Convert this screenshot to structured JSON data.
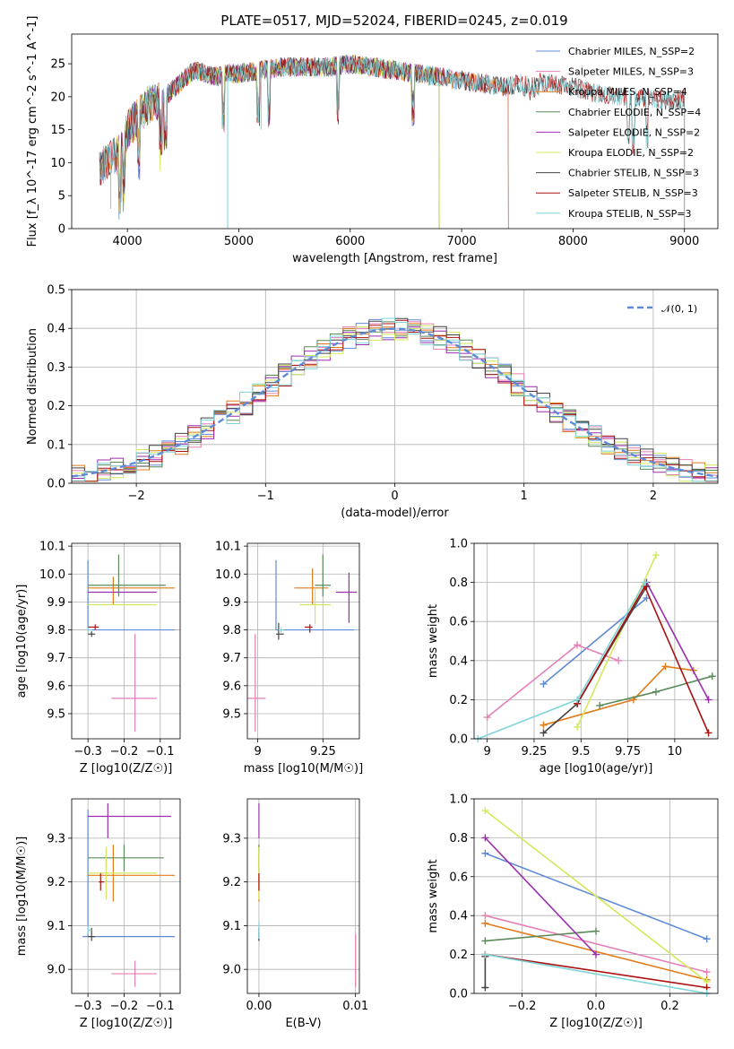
{
  "figure": {
    "title": "PLATE=0517, MJD=52024, FIBERID=0245, z=0.019"
  },
  "colors": {
    "Chabrier MILES": "#5f8bd6",
    "Salpeter MILES": "#e57fb5",
    "Kroupa MILES": "#e07b1a",
    "Chabrier ELODIE": "#5a8a5a",
    "Salpeter ELODIE": "#9b2fae",
    "Kroupa ELODIE": "#d4e85a",
    "Chabrier STELIB": "#444444",
    "Salpeter STELIB": "#aa1111",
    "Kroupa STELIB": "#7fd4d8"
  },
  "chart_data": [
    {
      "id": "spectrum",
      "type": "line",
      "xlabel": "wavelength [Angstrom, rest frame]",
      "ylabel": "Flux [f_λ 10^-17 erg cm^-2 s^-1 A^-1]",
      "xlim": [
        3500,
        9300
      ],
      "ylim": [
        0,
        29.5
      ],
      "xticks": [
        4000,
        5000,
        6000,
        7000,
        8000,
        9000
      ],
      "yticks": [
        0,
        5,
        10,
        15,
        20,
        25
      ],
      "legend_position": "top-right",
      "legend": [
        "Chabrier MILES, N_SSP=2",
        "Salpeter MILES, N_SSP=3",
        "Kroupa MILES, N_SSP=4",
        "Chabrier ELODIE, N_SSP=4",
        "Salpeter ELODIE, N_SSP=2",
        "Kroupa ELODIE, N_SSP=2",
        "Chabrier STELIB, N_SSP=3",
        "Salpeter STELIB, N_SSP=3",
        "Kroupa STELIB, N_SSP=3"
      ],
      "continuum_x": [
        3750,
        3800,
        3850,
        3900,
        3950,
        4000,
        4100,
        4200,
        4300,
        4400,
        4500,
        4600,
        4700,
        4800,
        4900,
        5000,
        5200,
        5400,
        5600,
        5800,
        6000,
        6200,
        6400,
        6600,
        6800,
        7000,
        7200,
        7400,
        7600,
        7800,
        8000,
        8200,
        8400,
        8600,
        8800,
        9000
      ],
      "continuum_y": [
        9,
        10,
        11,
        11,
        12,
        15,
        17,
        19,
        19.5,
        21,
        22.5,
        24,
        23.5,
        23,
        23.5,
        23.5,
        24,
        24.5,
        24.5,
        24.5,
        25,
        24.5,
        24,
        23.5,
        23,
        22.5,
        22,
        21.5,
        22.5,
        22,
        21.5,
        20.5,
        20,
        20,
        19.5,
        19.5
      ],
      "series_ranges": [
        {
          "name": "Chabrier MILES",
          "xmin": 3750,
          "xmax": 7420
        },
        {
          "name": "Salpeter MILES",
          "xmin": 3750,
          "xmax": 7420
        },
        {
          "name": "Kroupa MILES",
          "xmin": 3750,
          "xmax": 7420
        },
        {
          "name": "Chabrier ELODIE",
          "xmin": 3900,
          "xmax": 6800
        },
        {
          "name": "Salpeter ELODIE",
          "xmin": 3900,
          "xmax": 6800
        },
        {
          "name": "Kroupa ELODIE",
          "xmin": 3900,
          "xmax": 6800
        },
        {
          "name": "Chabrier STELIB",
          "xmin": 3750,
          "xmax": 9000
        },
        {
          "name": "Salpeter STELIB",
          "xmin": 3750,
          "xmax": 9000
        },
        {
          "name": "Kroupa STELIB",
          "xmin": 3750,
          "xmax": 9000
        }
      ]
    },
    {
      "id": "residuals",
      "type": "histogram",
      "xlabel": "(data-model)/error",
      "ylabel": "Normed distribution",
      "xlim": [
        -2.5,
        2.5
      ],
      "ylim": [
        0,
        0.5
      ],
      "xticks": [
        -2,
        -1,
        0,
        1,
        2
      ],
      "yticks": [
        0.0,
        0.1,
        0.2,
        0.3,
        0.4,
        0.5
      ],
      "bin_width": 0.1,
      "legend_position": "top-right",
      "reference_curve": {
        "name": "𝒩(0, 1)",
        "mean": 0,
        "sigma": 1,
        "color": "#5f8bd6"
      }
    },
    {
      "id": "age-vs-Z",
      "type": "scatter",
      "xlabel": "Z [log10(Z/Z☉)]",
      "ylabel": "age [log10(age/yr)]",
      "xlim": [
        -0.345,
        -0.045
      ],
      "ylim": [
        9.41,
        10.11
      ],
      "xticks": [
        -0.3,
        -0.2,
        -0.1
      ],
      "yticks": [
        9.5,
        9.6,
        9.7,
        9.8,
        9.9,
        10.0,
        10.1
      ],
      "points": [
        {
          "name": "Chabrier MILES",
          "x": -0.3,
          "y": 9.8,
          "xerr": [
            0,
            0.24
          ],
          "yerr": [
            0,
            0.25
          ]
        },
        {
          "name": "Salpeter MILES",
          "x": -0.17,
          "y": 9.555,
          "xerr": [
            0.065,
            0.06
          ],
          "yerr": [
            0.12,
            0.23
          ]
        },
        {
          "name": "Kroupa MILES",
          "x": -0.23,
          "y": 9.95,
          "xerr": [
            0.07,
            0.17
          ],
          "yerr": [
            0.06,
            0.04
          ]
        },
        {
          "name": "Chabrier ELODIE",
          "x": -0.215,
          "y": 9.96,
          "xerr": [
            0.085,
            0.13
          ],
          "yerr": [
            0.04,
            0.11
          ]
        },
        {
          "name": "Salpeter ELODIE",
          "x": -0.26,
          "y": 9.935,
          "xerr": [
            0.04,
            0.15
          ],
          "yerr": [
            0,
            0
          ]
        },
        {
          "name": "Kroupa ELODIE",
          "x": -0.25,
          "y": 9.89,
          "xerr": [
            0.05,
            0.14
          ],
          "yerr": [
            0,
            0
          ]
        },
        {
          "name": "Chabrier STELIB",
          "x": -0.29,
          "y": 9.785,
          "xerr": [
            0.01,
            0.01
          ],
          "yerr": [
            0.01,
            0.01
          ]
        },
        {
          "name": "Salpeter STELIB",
          "x": -0.28,
          "y": 9.81,
          "xerr": [
            0.02,
            0.01
          ],
          "yerr": [
            0.01,
            0.01
          ]
        },
        {
          "name": "Kroupa STELIB",
          "x": -0.3,
          "y": 9.8,
          "xerr": [
            0,
            0.01
          ],
          "yerr": [
            0.01,
            0.01
          ]
        }
      ]
    },
    {
      "id": "age-vs-mass",
      "type": "scatter",
      "xlabel": "mass [log10(M/M☉)]",
      "ylabel": "",
      "xlim": [
        8.96,
        9.39
      ],
      "ylim": [
        9.41,
        10.11
      ],
      "xticks": [
        9.0,
        9.25
      ],
      "yticks": [
        9.5,
        9.6,
        9.7,
        9.8,
        9.9,
        10.0,
        10.1
      ],
      "points": [
        {
          "name": "Chabrier MILES",
          "x": 9.07,
          "y": 9.8,
          "xerr": [
            0,
            0.3
          ],
          "yerr": [
            0,
            0.25
          ]
        },
        {
          "name": "Salpeter MILES",
          "x": 8.99,
          "y": 9.555,
          "xerr": [
            0.03,
            0.04
          ],
          "yerr": [
            0.12,
            0.23
          ]
        },
        {
          "name": "Kroupa MILES",
          "x": 9.21,
          "y": 9.95,
          "xerr": [
            0.07,
            0.06
          ],
          "yerr": [
            0.06,
            0.07
          ]
        },
        {
          "name": "Chabrier ELODIE",
          "x": 9.25,
          "y": 9.96,
          "xerr": [
            0.03,
            0.03
          ],
          "yerr": [
            0.04,
            0.11
          ]
        },
        {
          "name": "Salpeter ELODIE",
          "x": 9.35,
          "y": 9.935,
          "xerr": [
            0.05,
            0.03
          ],
          "yerr": [
            0.11,
            0.07
          ]
        },
        {
          "name": "Kroupa ELODIE",
          "x": 9.22,
          "y": 9.89,
          "xerr": [
            0.06,
            0.06
          ],
          "yerr": [
            0.07,
            0.06
          ]
        },
        {
          "name": "Chabrier STELIB",
          "x": 9.08,
          "y": 9.785,
          "xerr": [
            0.01,
            0.02
          ],
          "yerr": [
            0.02,
            0.04
          ]
        },
        {
          "name": "Salpeter STELIB",
          "x": 9.2,
          "y": 9.81,
          "xerr": [
            0.02,
            0.01
          ],
          "yerr": [
            0.02,
            0.01
          ]
        },
        {
          "name": "Kroupa STELIB",
          "x": 9.09,
          "y": 9.8,
          "xerr": [
            0.01,
            0.01
          ],
          "yerr": [
            0.01,
            0.01
          ]
        }
      ]
    },
    {
      "id": "weight-vs-age",
      "type": "line",
      "xlabel": "age [log10(age/yr)]",
      "ylabel": "mass weight",
      "xlim": [
        8.93,
        10.23
      ],
      "ylim": [
        0,
        1.0
      ],
      "xticks": [
        9.0,
        9.25,
        9.5,
        9.75,
        10.0
      ],
      "yticks": [
        0.0,
        0.2,
        0.4,
        0.6,
        0.8,
        1.0
      ],
      "series": [
        {
          "name": "Chabrier MILES",
          "x": [
            9.3,
            9.85
          ],
          "y": [
            0.28,
            0.72
          ]
        },
        {
          "name": "Salpeter MILES",
          "x": [
            9.0,
            9.48,
            9.7
          ],
          "y": [
            0.11,
            0.48,
            0.4
          ]
        },
        {
          "name": "Kroupa MILES",
          "x": [
            9.3,
            9.78,
            9.95,
            10.1
          ],
          "y": [
            0.07,
            0.2,
            0.37,
            0.35
          ]
        },
        {
          "name": "Chabrier ELODIE",
          "x": [
            9.6,
            9.9,
            10.2
          ],
          "y": [
            0.17,
            0.24,
            0.32
          ]
        },
        {
          "name": "Salpeter ELODIE",
          "x": [
            9.85,
            10.18
          ],
          "y": [
            0.8,
            0.2
          ]
        },
        {
          "name": "Kroupa ELODIE",
          "x": [
            9.48,
            9.9
          ],
          "y": [
            0.06,
            0.94
          ]
        },
        {
          "name": "Chabrier STELIB",
          "x": [
            9.3,
            9.48,
            9.85
          ],
          "y": [
            0.03,
            0.18,
            0.78
          ]
        },
        {
          "name": "Salpeter STELIB",
          "x": [
            9.48,
            9.84,
            10.18
          ],
          "y": [
            0.18,
            0.78,
            0.03
          ]
        },
        {
          "name": "Kroupa STELIB",
          "x": [
            8.95,
            9.48,
            9.84
          ],
          "y": [
            0.0,
            0.2,
            0.8
          ]
        }
      ]
    },
    {
      "id": "mass-vs-Z",
      "type": "scatter",
      "xlabel": "Z [log10(Z/Z☉)]",
      "ylabel": "mass [log10(M/M☉)]",
      "xlim": [
        -0.345,
        -0.045
      ],
      "ylim": [
        8.945,
        9.39
      ],
      "xticks": [
        -0.3,
        -0.2,
        -0.1
      ],
      "yticks": [
        9.0,
        9.1,
        9.2,
        9.3
      ],
      "points": [
        {
          "name": "Chabrier MILES",
          "x": -0.3,
          "y": 9.075,
          "xerr": [
            0.015,
            0.24
          ],
          "yerr": [
            0,
            0.29
          ]
        },
        {
          "name": "Salpeter MILES",
          "x": -0.17,
          "y": 8.99,
          "xerr": [
            0.065,
            0.06
          ],
          "yerr": [
            0.03,
            0.03
          ]
        },
        {
          "name": "Kroupa MILES",
          "x": -0.23,
          "y": 9.215,
          "xerr": [
            0.07,
            0.17
          ],
          "yerr": [
            0.06,
            0.07
          ]
        },
        {
          "name": "Chabrier ELODIE",
          "x": -0.2,
          "y": 9.255,
          "xerr": [
            0.1,
            0.11
          ],
          "yerr": [
            0.03,
            0.03
          ]
        },
        {
          "name": "Salpeter ELODIE",
          "x": -0.245,
          "y": 9.35,
          "xerr": [
            0.055,
            0.175
          ],
          "yerr": [
            0.05,
            0.03
          ]
        },
        {
          "name": "Kroupa ELODIE",
          "x": -0.25,
          "y": 9.22,
          "xerr": [
            0.05,
            0.14
          ],
          "yerr": [
            0.06,
            0.06
          ]
        },
        {
          "name": "Chabrier STELIB",
          "x": -0.29,
          "y": 9.075,
          "xerr": [
            0.01,
            0.01
          ],
          "yerr": [
            0.01,
            0.02
          ]
        },
        {
          "name": "Salpeter STELIB",
          "x": -0.265,
          "y": 9.2,
          "xerr": [
            0.005,
            0.01
          ],
          "yerr": [
            0.02,
            0.02
          ]
        },
        {
          "name": "Kroupa STELIB",
          "x": -0.3,
          "y": 9.09,
          "xerr": [
            0,
            0.01
          ],
          "yerr": [
            0.01,
            0.01
          ]
        }
      ]
    },
    {
      "id": "mass-vs-ebv",
      "type": "scatter",
      "xlabel": "E(B-V)",
      "ylabel": "",
      "xlim": [
        -0.0012,
        0.0104
      ],
      "ylim": [
        8.945,
        9.39
      ],
      "xticks": [
        0.0,
        0.01
      ],
      "xticklabels": [
        "0.00",
        "0.01"
      ],
      "yticks": [
        9.0,
        9.1,
        9.2,
        9.3
      ],
      "points": [
        {
          "name": "Chabrier MILES",
          "x": 0.0,
          "y": 9.075,
          "xerr": [
            0,
            0
          ],
          "yerr": [
            0.01,
            0.01
          ]
        },
        {
          "name": "Salpeter MILES",
          "x": 0.01,
          "y": 8.99,
          "xerr": [
            0,
            0
          ],
          "yerr": [
            0.03,
            0.09
          ]
        },
        {
          "name": "Kroupa MILES",
          "x": 0.0,
          "y": 9.215,
          "xerr": [
            0,
            0
          ],
          "yerr": [
            0.06,
            0.07
          ]
        },
        {
          "name": "Chabrier ELODIE",
          "x": 0.0,
          "y": 9.255,
          "xerr": [
            0,
            0
          ],
          "yerr": [
            0.03,
            0.03
          ]
        },
        {
          "name": "Salpeter ELODIE",
          "x": 0.0,
          "y": 9.35,
          "xerr": [
            0,
            0
          ],
          "yerr": [
            0.05,
            0.03
          ]
        },
        {
          "name": "Kroupa ELODIE",
          "x": 0.0,
          "y": 9.22,
          "xerr": [
            0,
            0
          ],
          "yerr": [
            0.06,
            0.06
          ]
        },
        {
          "name": "Chabrier STELIB",
          "x": 0.0,
          "y": 9.075,
          "xerr": [
            0,
            0
          ],
          "yerr": [
            0.01,
            0.02
          ]
        },
        {
          "name": "Salpeter STELIB",
          "x": 0.0,
          "y": 9.2,
          "xerr": [
            0,
            0
          ],
          "yerr": [
            0.02,
            0.02
          ]
        },
        {
          "name": "Kroupa STELIB",
          "x": 0.0,
          "y": 9.09,
          "xerr": [
            0,
            0
          ],
          "yerr": [
            0.02,
            0.02
          ]
        }
      ]
    },
    {
      "id": "weight-vs-Z",
      "type": "line",
      "xlabel": "Z [log10(Z/Z☉)]",
      "ylabel": "mass weight",
      "xlim": [
        -0.33,
        0.33
      ],
      "ylim": [
        0,
        1.0
      ],
      "xticks": [
        -0.2,
        0.0,
        0.2
      ],
      "xticklabels": [
        "−0.2",
        "0.0",
        "0.2"
      ],
      "yticks": [
        0.0,
        0.2,
        0.4,
        0.6,
        0.8,
        1.0
      ],
      "series": [
        {
          "name": "Chabrier MILES",
          "x": [
            -0.3,
            0.3
          ],
          "y": [
            0.72,
            0.28
          ]
        },
        {
          "name": "Salpeter MILES",
          "x": [
            -0.3,
            0.3
          ],
          "y": [
            0.4,
            0.11
          ]
        },
        {
          "name": "Kroupa MILES",
          "x": [
            -0.3,
            0.3
          ],
          "y": [
            0.36,
            0.07
          ]
        },
        {
          "name": "Chabrier ELODIE",
          "x": [
            -0.3,
            0.0
          ],
          "y": [
            0.27,
            0.32
          ]
        },
        {
          "name": "Salpeter ELODIE",
          "x": [
            -0.3,
            0.0
          ],
          "y": [
            0.8,
            0.2
          ]
        },
        {
          "name": "Kroupa ELODIE",
          "x": [
            -0.3,
            0.3
          ],
          "y": [
            0.94,
            0.06
          ]
        },
        {
          "name": "Chabrier STELIB",
          "x": [
            -0.3,
            -0.3
          ],
          "y": [
            0.03,
            0.19
          ]
        },
        {
          "name": "Salpeter STELIB",
          "x": [
            -0.3,
            0.3
          ],
          "y": [
            0.2,
            0.03
          ]
        },
        {
          "name": "Kroupa STELIB",
          "x": [
            -0.3,
            0.3
          ],
          "y": [
            0.2,
            0.0
          ]
        }
      ]
    }
  ]
}
